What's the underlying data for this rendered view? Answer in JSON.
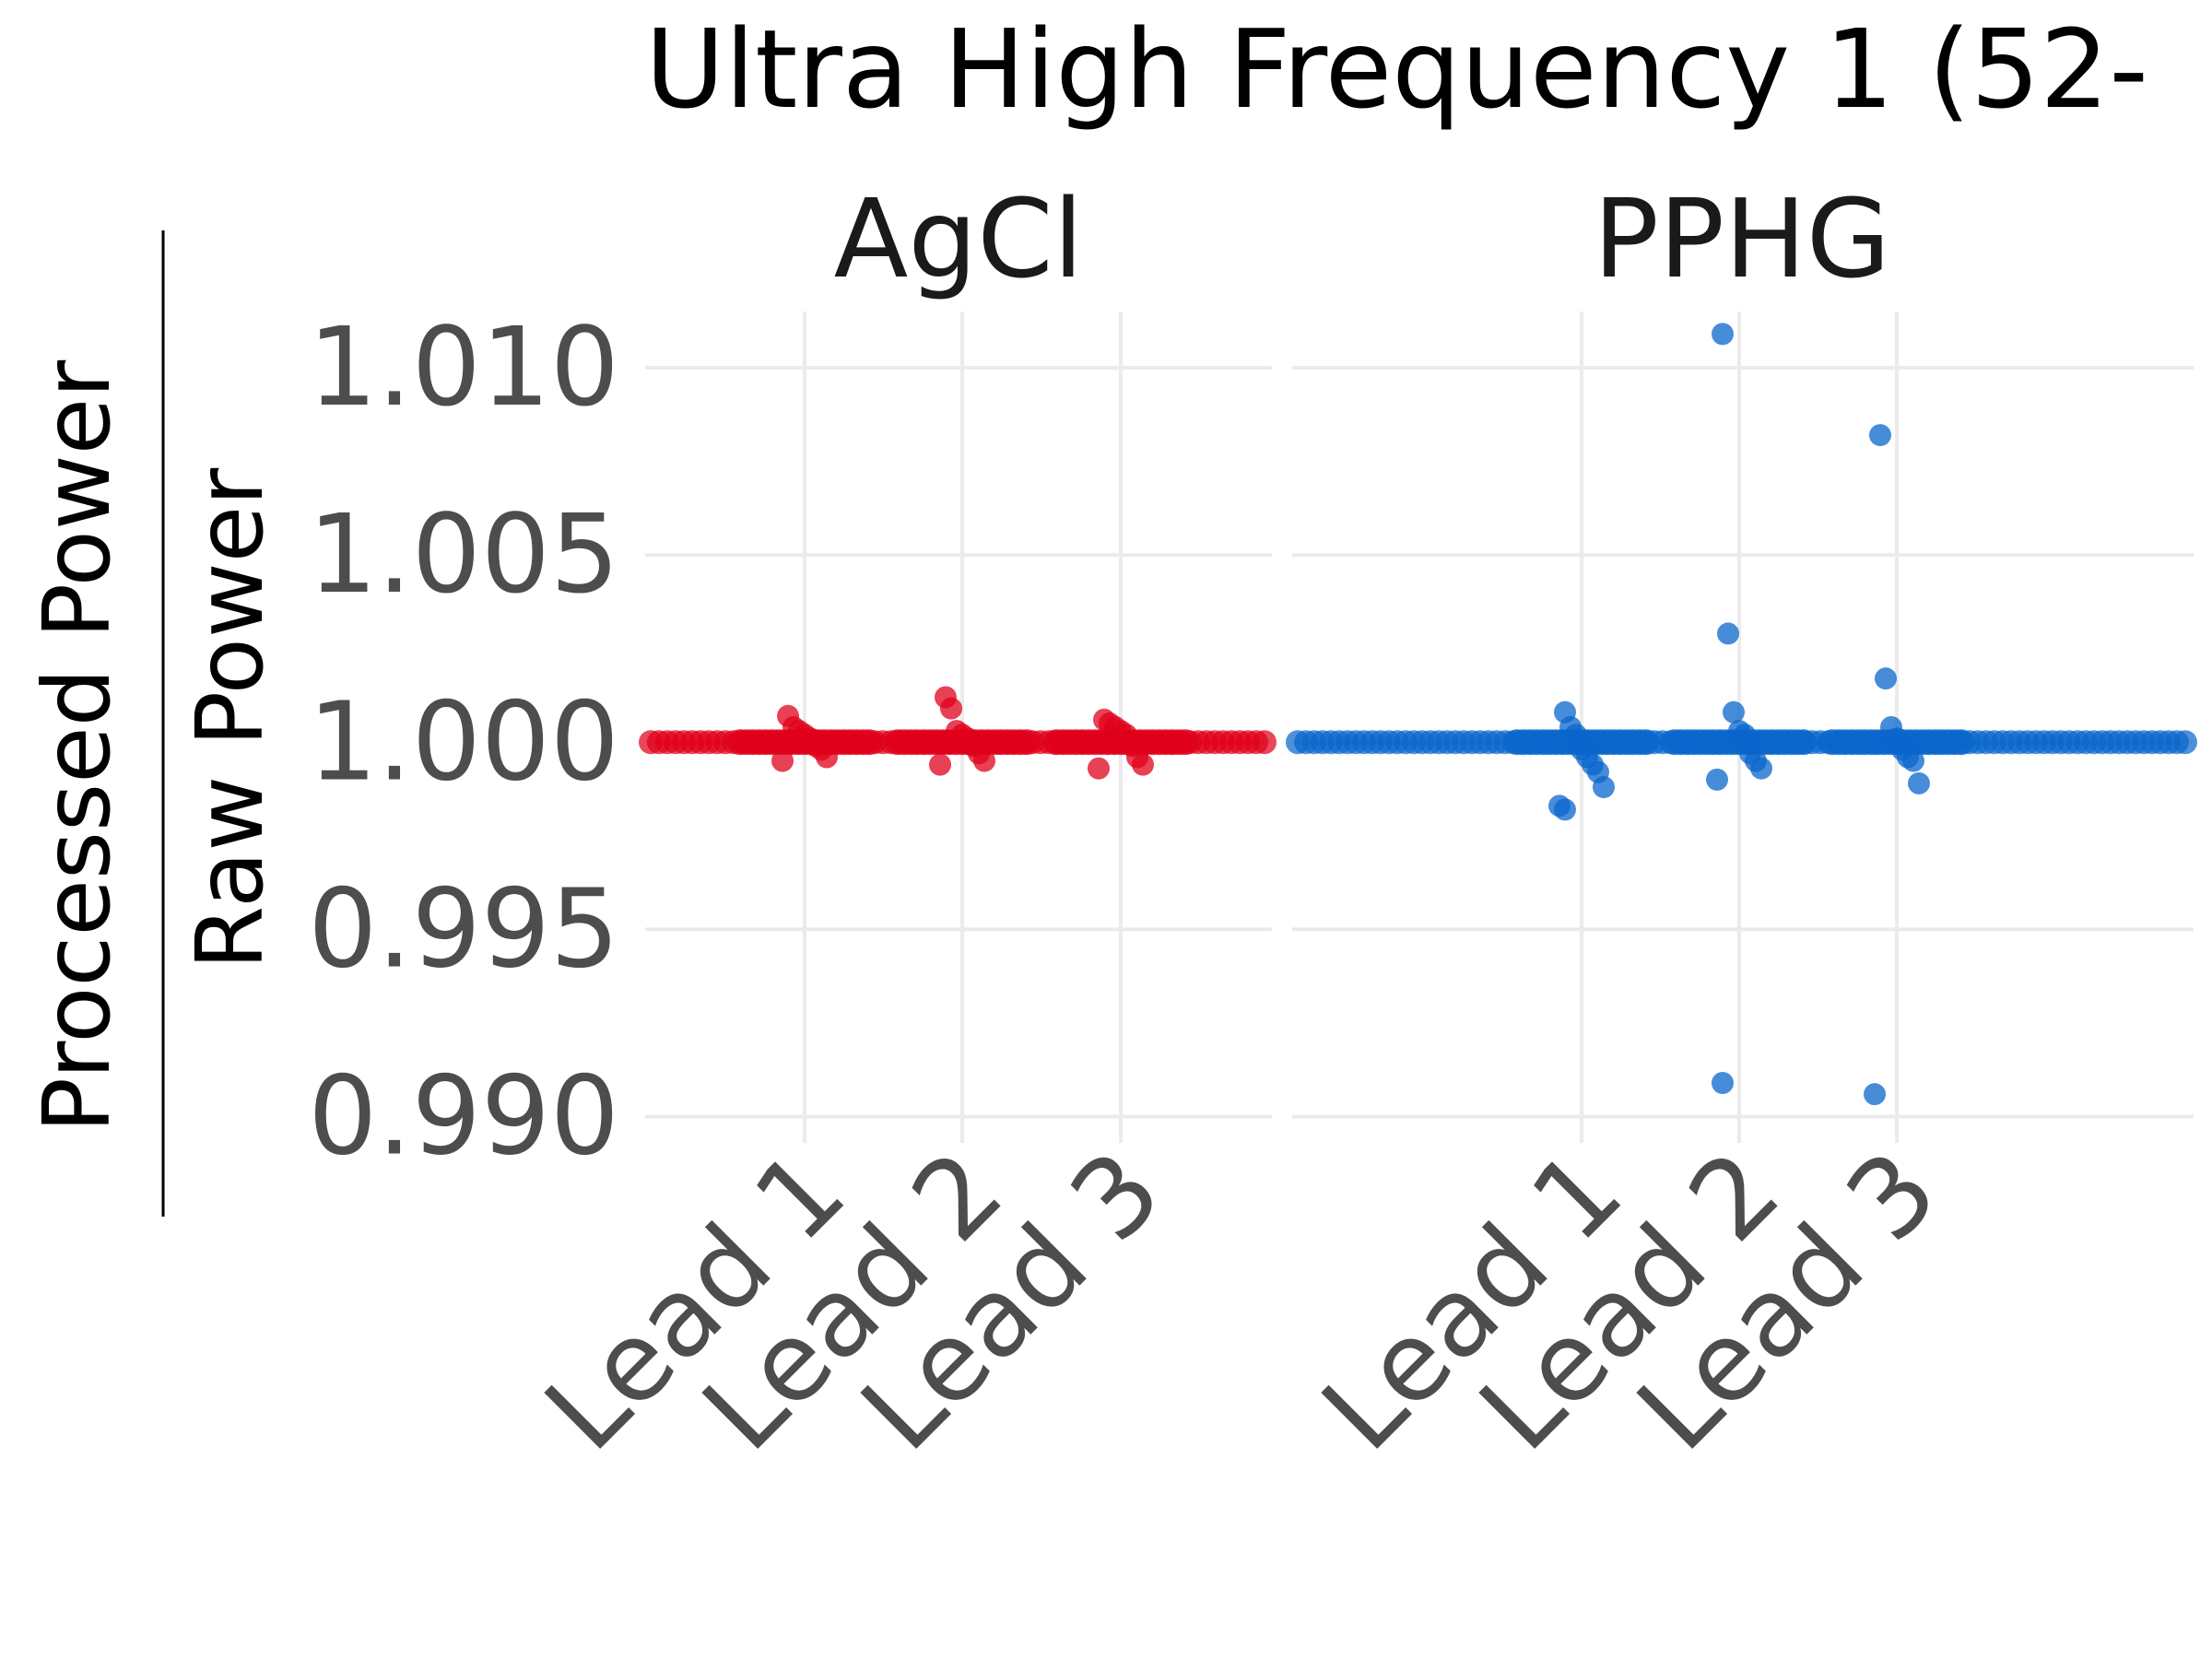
{
  "chart_data": {
    "type": "scatter",
    "title": "Ultra High Frequency 1 (52-",
    "ylabel_numerator": "Processed Power",
    "ylabel_denominator": "Raw Power",
    "xlabel": "",
    "ylim": [
      0.9893,
      1.0115
    ],
    "yticks": [
      0.99,
      0.995,
      1.0,
      1.005,
      1.01
    ],
    "ytick_labels": [
      "0.990",
      "0.995",
      "1.000",
      "1.005",
      "1.010"
    ],
    "categories": [
      "Lead 1",
      "Lead 2",
      "Lead 3"
    ],
    "grid": true,
    "legend": "none",
    "panels": [
      {
        "name": "AgCl",
        "color": "#e0001b",
        "baseline": 1.0,
        "points": [
          {
            "x": "Lead 1",
            "y": 1.0007
          },
          {
            "x": "Lead 1",
            "y": 1.0004
          },
          {
            "x": "Lead 1",
            "y": 1.0003
          },
          {
            "x": "Lead 1",
            "y": 1.0002
          },
          {
            "x": "Lead 1",
            "y": 1.0001
          },
          {
            "x": "Lead 1",
            "y": 0.9999
          },
          {
            "x": "Lead 1",
            "y": 0.9998
          },
          {
            "x": "Lead 1",
            "y": 0.9996
          },
          {
            "x": "Lead 1",
            "y": 0.9995
          },
          {
            "x": "Lead 2",
            "y": 1.0012
          },
          {
            "x": "Lead 2",
            "y": 1.0009
          },
          {
            "x": "Lead 2",
            "y": 1.0003
          },
          {
            "x": "Lead 2",
            "y": 1.0002
          },
          {
            "x": "Lead 2",
            "y": 1.0001
          },
          {
            "x": "Lead 2",
            "y": 0.9999
          },
          {
            "x": "Lead 2",
            "y": 0.9997
          },
          {
            "x": "Lead 2",
            "y": 0.9995
          },
          {
            "x": "Lead 2",
            "y": 0.9994
          },
          {
            "x": "Lead 3",
            "y": 1.0006
          },
          {
            "x": "Lead 3",
            "y": 1.0005
          },
          {
            "x": "Lead 3",
            "y": 1.0004
          },
          {
            "x": "Lead 3",
            "y": 1.0003
          },
          {
            "x": "Lead 3",
            "y": 1.0002
          },
          {
            "x": "Lead 3",
            "y": 0.9999
          },
          {
            "x": "Lead 3",
            "y": 0.9996
          },
          {
            "x": "Lead 3",
            "y": 0.9994
          },
          {
            "x": "Lead 3",
            "y": 0.9993
          }
        ]
      },
      {
        "name": "PPHG",
        "color": "#0a66cc",
        "baseline": 1.0,
        "points": [
          {
            "x": "Lead 1",
            "y": 1.0008
          },
          {
            "x": "Lead 1",
            "y": 1.0004
          },
          {
            "x": "Lead 1",
            "y": 1.0002
          },
          {
            "x": "Lead 1",
            "y": 0.9998
          },
          {
            "x": "Lead 1",
            "y": 0.9996
          },
          {
            "x": "Lead 1",
            "y": 0.9994
          },
          {
            "x": "Lead 1",
            "y": 0.9992
          },
          {
            "x": "Lead 1",
            "y": 0.9988
          },
          {
            "x": "Lead 1",
            "y": 0.9983
          },
          {
            "x": "Lead 1",
            "y": 0.9982
          },
          {
            "x": "Lead 2",
            "y": 1.0109
          },
          {
            "x": "Lead 2",
            "y": 1.0029
          },
          {
            "x": "Lead 2",
            "y": 1.0008
          },
          {
            "x": "Lead 2",
            "y": 1.0003
          },
          {
            "x": "Lead 2",
            "y": 1.0002
          },
          {
            "x": "Lead 2",
            "y": 0.9997
          },
          {
            "x": "Lead 2",
            "y": 0.9995
          },
          {
            "x": "Lead 2",
            "y": 0.9993
          },
          {
            "x": "Lead 2",
            "y": 0.999
          },
          {
            "x": "Lead 2",
            "y": 0.9909
          },
          {
            "x": "Lead 3",
            "y": 1.0082
          },
          {
            "x": "Lead 3",
            "y": 1.0017
          },
          {
            "x": "Lead 3",
            "y": 1.0004
          },
          {
            "x": "Lead 3",
            "y": 1.0001
          },
          {
            "x": "Lead 3",
            "y": 0.9998
          },
          {
            "x": "Lead 3",
            "y": 0.9996
          },
          {
            "x": "Lead 3",
            "y": 0.9995
          },
          {
            "x": "Lead 3",
            "y": 0.9989
          },
          {
            "x": "Lead 3",
            "y": 0.9906
          }
        ]
      }
    ]
  }
}
